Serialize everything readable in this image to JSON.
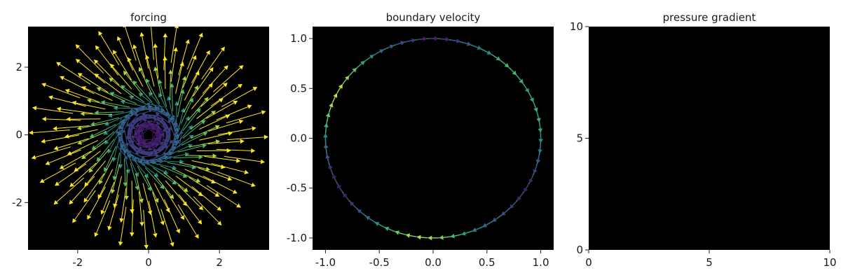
{
  "colormap": [
    "#440154",
    "#3b528b",
    "#21918c",
    "#5ec962",
    "#fde725"
  ],
  "background": "#000000",
  "chart_data": [
    {
      "type": "quiver",
      "title": "forcing",
      "xlim": [
        -3.4,
        3.4
      ],
      "ylim": [
        -3.4,
        3.2
      ],
      "xticks": [
        {
          "v": -2,
          "label": "-2"
        },
        {
          "v": 0,
          "label": "0"
        },
        {
          "v": 2,
          "label": "2"
        }
      ],
      "yticks": [
        {
          "v": -2,
          "label": "-2"
        },
        {
          "v": 0,
          "label": "0"
        },
        {
          "v": 2,
          "label": "2"
        }
      ],
      "field": {
        "center": [
          0,
          0
        ],
        "radii": [
          0.25,
          0.5,
          0.75,
          1.0,
          1.3,
          1.6,
          1.9,
          2.2,
          2.5,
          2.8
        ],
        "arrows_per_ring": 28,
        "vortex_core_radius": 0.9
      }
    },
    {
      "type": "quiver",
      "title": "boundary velocity",
      "xlim": [
        -1.12,
        1.12
      ],
      "ylim": [
        -1.12,
        1.12
      ],
      "xticks": [
        {
          "v": -1.0,
          "label": "-1.0"
        },
        {
          "v": -0.5,
          "label": "-0.5"
        },
        {
          "v": 0.0,
          "label": "0.0"
        },
        {
          "v": 0.5,
          "label": "0.5"
        },
        {
          "v": 1.0,
          "label": "1.0"
        }
      ],
      "yticks": [
        {
          "v": -1.0,
          "label": "-1.0"
        },
        {
          "v": -0.5,
          "label": "-0.5"
        },
        {
          "v": 0.0,
          "label": "0.0"
        },
        {
          "v": 0.5,
          "label": "0.5"
        },
        {
          "v": 1.0,
          "label": "1.0"
        }
      ],
      "boundary": {
        "center": [
          0,
          0
        ],
        "radius": 1.0,
        "num_points": 60
      }
    },
    {
      "type": "heatmap",
      "title": "pressure gradient",
      "xlim": [
        0,
        10
      ],
      "ylim": [
        0,
        10
      ],
      "xticks": [
        {
          "v": 0,
          "label": "0"
        },
        {
          "v": 5,
          "label": "5"
        },
        {
          "v": 10,
          "label": "10"
        }
      ],
      "yticks": [
        {
          "v": 0,
          "label": "0"
        },
        {
          "v": 5,
          "label": "5"
        },
        {
          "v": 10,
          "label": "10"
        }
      ]
    }
  ]
}
